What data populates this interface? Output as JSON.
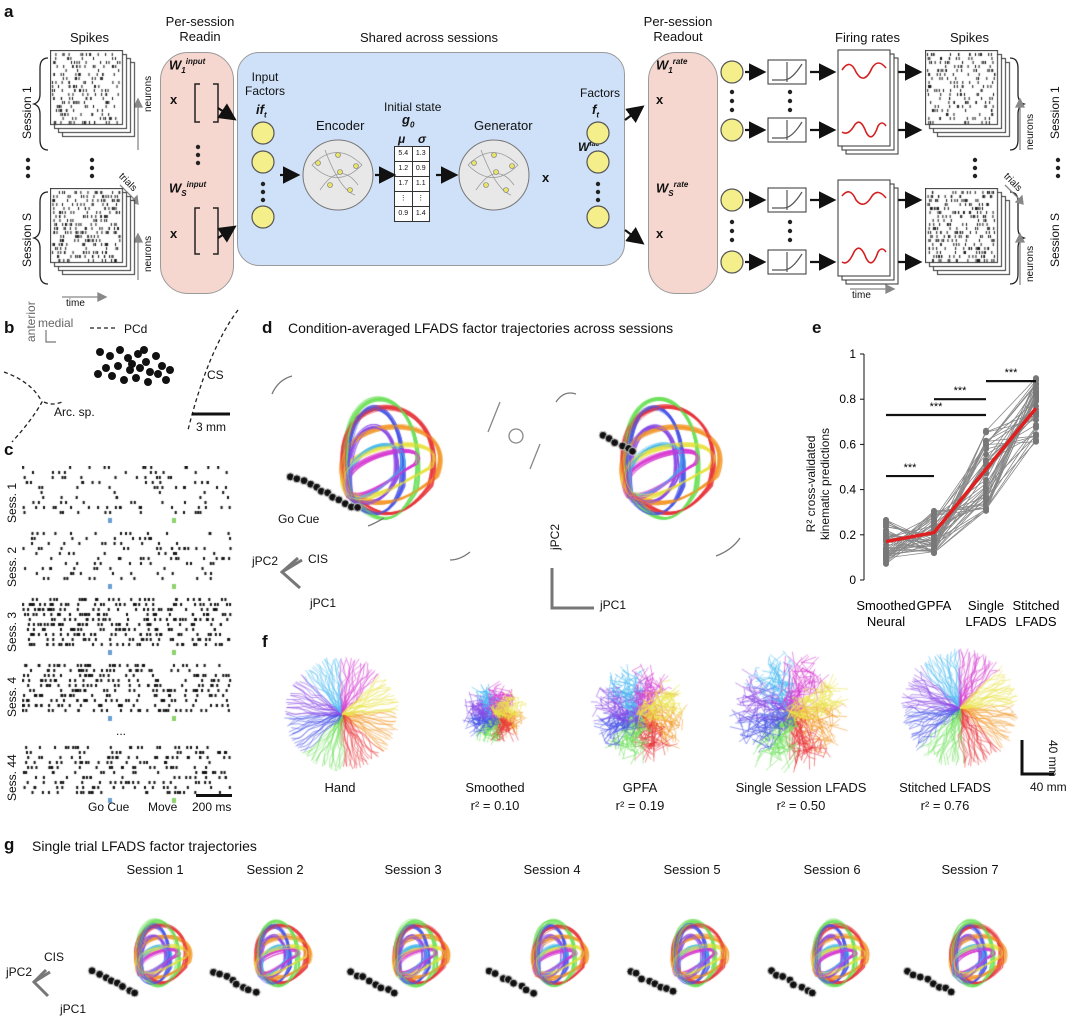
{
  "panel_labels": {
    "a": "a",
    "b": "b",
    "c": "c",
    "d": "d",
    "e": "e",
    "f": "f",
    "g": "g"
  },
  "panel_a": {
    "spikes_left": "Spikes",
    "readin_title_1": "Per-session",
    "readin_title_2": "Readin",
    "shared_title": "Shared across sessions",
    "readout_title_1": "Per-session",
    "readout_title_2": "Readout",
    "firing_rates": "Firing rates",
    "spikes_right": "Spikes",
    "session_1": "Session 1",
    "session_s": "Session S",
    "neurons": "neurons",
    "trials": "trials",
    "time": "time",
    "input_factors_1": "Input",
    "input_factors_2": "Factors",
    "input_factor_sym": "if",
    "input_factor_sub": "t",
    "encoder": "Encoder",
    "initial_state": "Initial state",
    "g0": "g",
    "g0_sub": "0",
    "mu": "μ",
    "sigma": "σ",
    "generator": "Generator",
    "factors": "Factors",
    "f_sym": "f",
    "f_sub": "t",
    "w_input_1": "W",
    "w_input_1_sub": "1",
    "w_input_s_sub": "S",
    "w_input_sup": "input",
    "w_fac": "W",
    "w_fac_sup": "fac",
    "w_rate_sup": "rate",
    "times_sign": "x",
    "state_values": [
      [
        "5.4",
        "1.3"
      ],
      [
        "1.2",
        "0.9"
      ],
      [
        "1.7",
        "1.1"
      ],
      [
        "⋮",
        "⋮"
      ],
      [
        "0.9",
        "1.4"
      ]
    ]
  },
  "panel_b": {
    "medial": "medial",
    "anterior": "anterior",
    "pcd": "PCd",
    "cs": "CS",
    "arc": "Arc. sp.",
    "scale": "3 mm"
  },
  "panel_c": {
    "sessions": [
      "Sess. 1",
      "Sess. 2",
      "Sess. 3",
      "Sess. 4",
      "Sess. 44"
    ],
    "go_cue": "Go Cue",
    "move": "Move",
    "scale": "200 ms",
    "ellipsis": "..."
  },
  "panel_d": {
    "title": "Condition-averaged LFADS factor trajectories across sessions",
    "go_cue": "Go Cue",
    "cis": "CIS",
    "jpc1": "jPC1",
    "jpc2": "jPC2"
  },
  "panel_e": {
    "ylabel_1": "R² cross-validated",
    "ylabel_2": "kinematic predictions",
    "significance": "***",
    "xlabels": [
      [
        "Smoothed",
        "Neural"
      ],
      [
        "GPFA",
        ""
      ],
      [
        "Single",
        "LFADS"
      ],
      [
        "Stitched",
        "LFADS"
      ]
    ]
  },
  "panel_f": {
    "labels": [
      "Hand",
      "Smoothed",
      "GPFA",
      "Single Session LFADS",
      "Stitched LFADS"
    ],
    "r2": [
      "",
      "r² = 0.10",
      "r² = 0.19",
      "r² = 0.50",
      "r² = 0.76"
    ],
    "scale_v": "40 mm",
    "scale_h": "40 mm"
  },
  "panel_g": {
    "title": "Single trial LFADS factor trajectories",
    "sessions": [
      "Session 1",
      "Session 2",
      "Session 3",
      "Session 4",
      "Session 5",
      "Session 6",
      "Session 7"
    ],
    "cis": "CIS",
    "jpc1": "jPC1",
    "jpc2": "jPC2"
  },
  "colors": {
    "orange": "#f39a2f",
    "red": "#e8363a",
    "green": "#6ee05a",
    "blue": "#4a55e8",
    "purple": "#8a4ae6",
    "cyan": "#46b9f0",
    "magenta": "#d63ad0",
    "yellow": "#e9e346"
  },
  "chart_data": {
    "type": "line",
    "categories": [
      "Smoothed Neural",
      "GPFA",
      "Single LFADS",
      "Stitched LFADS"
    ],
    "series": [
      {
        "values": [
          0.17,
          0.21,
          0.49,
          0.76
        ]
      }
    ],
    "ylabel": "R² cross-validated kinematic predictions",
    "ylim": [
      0,
      1
    ],
    "yticks": [
      0,
      0.2,
      0.4,
      0.6,
      0.8,
      1
    ]
  }
}
